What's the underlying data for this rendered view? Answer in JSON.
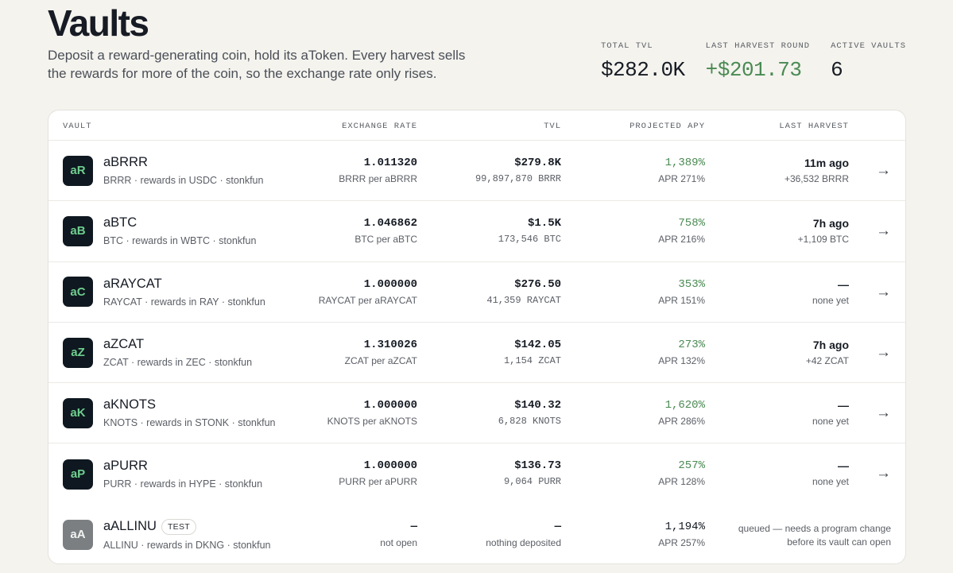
{
  "header": {
    "title": "Vaults",
    "subtitle": "Deposit a reward-generating coin, hold its aToken. Every harvest sells the rewards for more of the coin, so the exchange rate only rises."
  },
  "stats": [
    {
      "label": "TOTAL TVL",
      "value": "$282.0K"
    },
    {
      "label": "LAST HARVEST ROUND",
      "value": "+$201.73"
    },
    {
      "label": "ACTIVE VAULTS",
      "value": "6"
    }
  ],
  "table": {
    "columns": {
      "vault": "VAULT",
      "rate": "EXCHANGE RATE",
      "tvl": "TVL",
      "apy": "PROJECTED APY",
      "last": "LAST HARVEST"
    },
    "rows": [
      {
        "avatar": "aR",
        "name": "aBRRR",
        "desc": "BRRR · rewards in USDC · stonkfun",
        "rate": "1.011320",
        "rate_sub": "BRRR per aBRRR",
        "tvl": "$279.8K",
        "tvl_sub": "99,897,870 BRRR",
        "apy": "1,389%",
        "apr": "APR 271%",
        "last": "11m ago",
        "last_sub": "+36,532 BRRR",
        "arrow": "→"
      },
      {
        "avatar": "aB",
        "name": "aBTC",
        "desc": "BTC · rewards in WBTC · stonkfun",
        "rate": "1.046862",
        "rate_sub": "BTC per aBTC",
        "tvl": "$1.5K",
        "tvl_sub": "173,546 BTC",
        "apy": "758%",
        "apr": "APR 216%",
        "last": "7h ago",
        "last_sub": "+1,109 BTC",
        "arrow": "→"
      },
      {
        "avatar": "aC",
        "name": "aRAYCAT",
        "desc": "RAYCAT · rewards in RAY · stonkfun",
        "rate": "1.000000",
        "rate_sub": "RAYCAT per aRAYCAT",
        "tvl": "$276.50",
        "tvl_sub": "41,359 RAYCAT",
        "apy": "353%",
        "apr": "APR 151%",
        "last": "—",
        "last_sub": "none yet",
        "arrow": "→"
      },
      {
        "avatar": "aZ",
        "name": "aZCAT",
        "desc": "ZCAT · rewards in ZEC · stonkfun",
        "rate": "1.310026",
        "rate_sub": "ZCAT per aZCAT",
        "tvl": "$142.05",
        "tvl_sub": "1,154 ZCAT",
        "apy": "273%",
        "apr": "APR 132%",
        "last": "7h ago",
        "last_sub": "+42 ZCAT",
        "arrow": "→"
      },
      {
        "avatar": "aK",
        "name": "aKNOTS",
        "desc": "KNOTS · rewards in STONK · stonkfun",
        "rate": "1.000000",
        "rate_sub": "KNOTS per aKNOTS",
        "tvl": "$140.32",
        "tvl_sub": "6,828 KNOTS",
        "apy": "1,620%",
        "apr": "APR 286%",
        "last": "—",
        "last_sub": "none yet",
        "arrow": "→"
      },
      {
        "avatar": "aP",
        "name": "aPURR",
        "desc": "PURR · rewards in HYPE · stonkfun",
        "rate": "1.000000",
        "rate_sub": "PURR per aPURR",
        "tvl": "$136.73",
        "tvl_sub": "9,064 PURR",
        "apy": "257%",
        "apr": "APR 128%",
        "last": "—",
        "last_sub": "none yet",
        "arrow": "→"
      }
    ],
    "queued_row": {
      "avatar": "aA",
      "name": "aALLINU",
      "badge": "TEST",
      "desc": "ALLINU · rewards in DKNG · stonkfun",
      "rate": "—",
      "rate_sub": "not open",
      "tvl": "—",
      "tvl_sub": "nothing deposited",
      "apy": "1,194%",
      "apr": "APR 257%",
      "status_line1": "queued — needs a program change",
      "status_line2": "before its vault can open"
    }
  },
  "colors": {
    "accent_green": "#4a8a52",
    "avatar_bg": "#0f1820",
    "avatar_text": "#6fcf8f",
    "page_bg": "#f4f3ee"
  }
}
